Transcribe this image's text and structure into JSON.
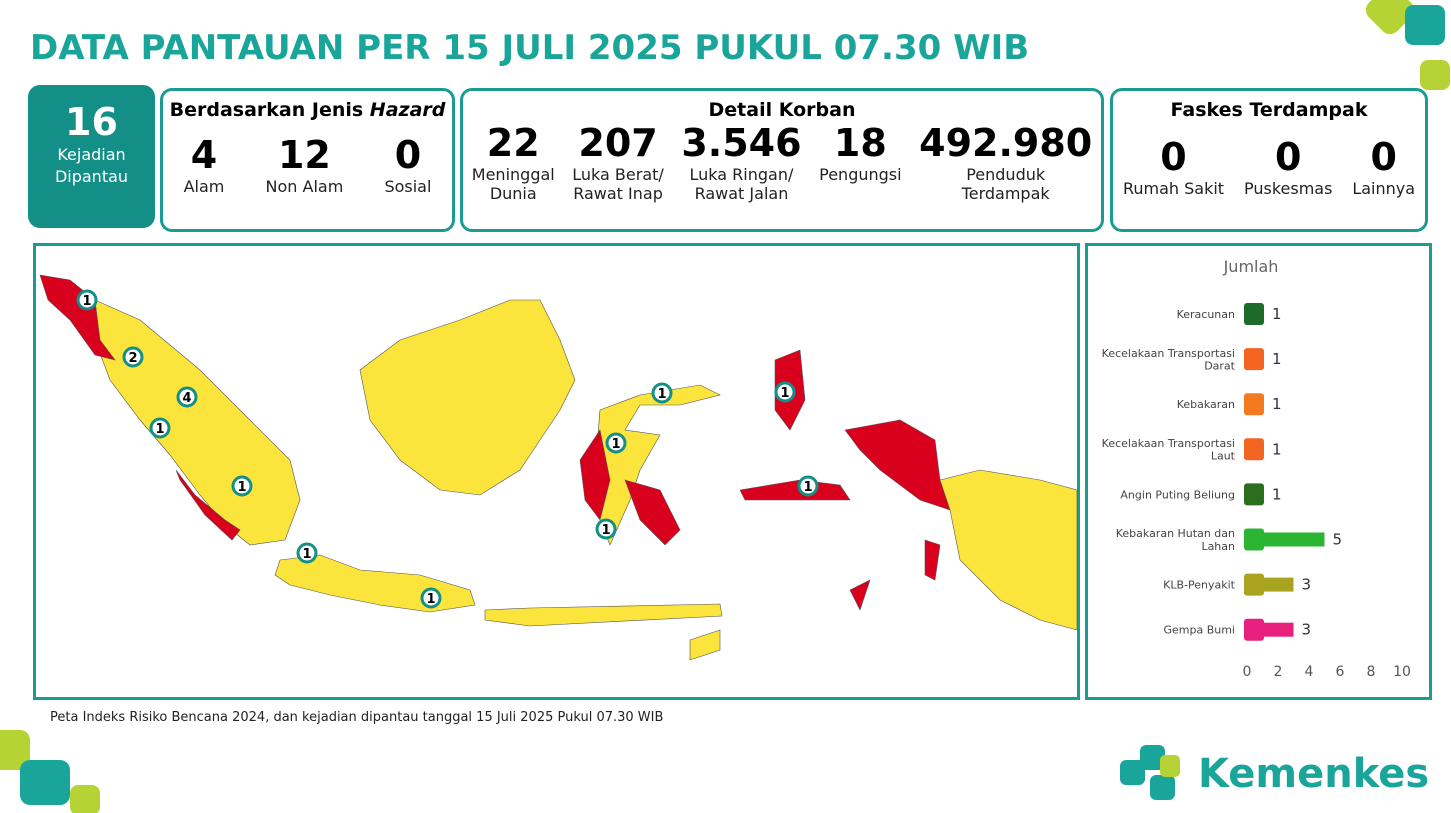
{
  "header": {
    "title": "DATA PANTAUAN PER 15 JULI 2025 PUKUL 07.30 WIB"
  },
  "total": {
    "value": "16",
    "label": "Kejadian\nDipantau"
  },
  "hazard": {
    "title": "Berdasarkan Jenis ",
    "title_em": "Hazard",
    "items": [
      {
        "value": "4",
        "label": "Alam"
      },
      {
        "value": "12",
        "label": "Non Alam"
      },
      {
        "value": "0",
        "label": "Sosial"
      }
    ]
  },
  "korban": {
    "title": "Detail Korban",
    "items": [
      {
        "value": "22",
        "label": "Meninggal\nDunia"
      },
      {
        "value": "207",
        "label": "Luka Berat/\nRawat Inap"
      },
      {
        "value": "3.546",
        "label": "Luka Ringan/\nRawat Jalan"
      },
      {
        "value": "18",
        "label": "Pengungsi"
      },
      {
        "value": "492.980",
        "label": "Penduduk\nTerdampak"
      }
    ]
  },
  "faskes": {
    "title": "Faskes Terdampak",
    "items": [
      {
        "value": "0",
        "label": "Rumah Sakit"
      },
      {
        "value": "0",
        "label": "Puskesmas"
      },
      {
        "value": "0",
        "label": "Lainnya"
      }
    ]
  },
  "map": {
    "markers": [
      1,
      2,
      4,
      1,
      1,
      1,
      1,
      1,
      1,
      1,
      1,
      1
    ]
  },
  "footer": {
    "note": "Peta Indeks Risiko Bencana 2024, dan kejadian dipantau tanggal 15 Juli 2025 Pukul 07.30 WIB"
  },
  "logo": {
    "text": "Kemenkes"
  },
  "chart_data": {
    "type": "bar",
    "orientation": "horizontal",
    "title": "Jumlah",
    "categories": [
      "Keracunan",
      "Kecelakaan Transportasi\nDarat",
      "Kebakaran",
      "Kecelakaan Transportasi\nLaut",
      "Angin Puting Beliung",
      "Kebakaran Hutan dan\nLahan",
      "KLB-Penyakit",
      "Gempa Bumi"
    ],
    "values": [
      1,
      1,
      1,
      1,
      1,
      5,
      3,
      3
    ],
    "colors": [
      "#1d6b2a",
      "#f26522",
      "#f47a20",
      "#f26522",
      "#2a6e1e",
      "#2bb532",
      "#a9a41d",
      "#e6207c"
    ],
    "xlim": [
      0,
      10
    ],
    "xticks": [
      0,
      2,
      4,
      6,
      8,
      10
    ],
    "grid": false
  }
}
